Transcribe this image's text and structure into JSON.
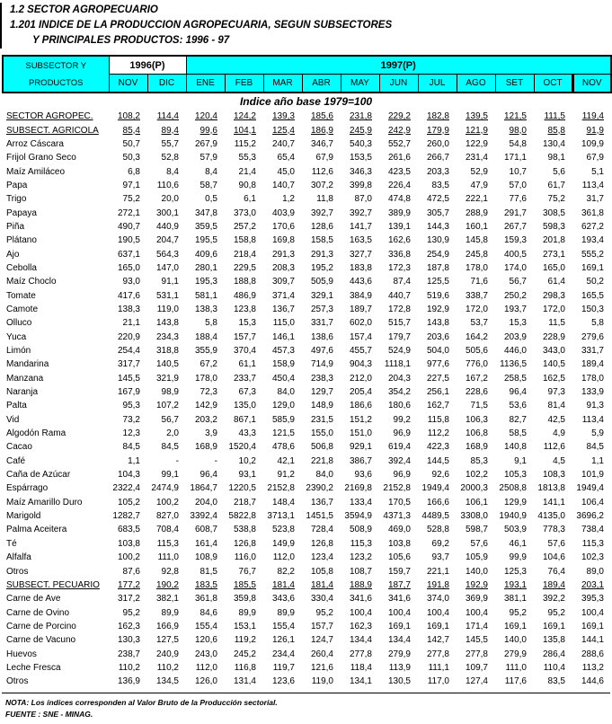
{
  "page": {
    "title1": "1.2 SECTOR AGROPECUARIO",
    "title2": "1.201 INDICE DE LA PRODUCCION AGROPECUARIA, SEGUN SUBSECTORES",
    "title3": "Y PRINCIPALES PRODUCTOS: 1996 - 97"
  },
  "header": {
    "col_title_line1": "SUBSECTOR Y",
    "col_title_line2": "PRODUCTOS",
    "year_1996": "1996(P)",
    "year_1997": "1997(P)",
    "months": [
      "NOV",
      "DIC",
      "ENE",
      "FEB",
      "MAR",
      "ABR",
      "MAY",
      "JUN",
      "JUL",
      "AGO",
      "SET",
      "OCT",
      "NOV"
    ]
  },
  "base_index_note": "Indice año base 1979=100",
  "colors": {
    "header_bg": "#00ffff",
    "year1996_bg": "#ffffff",
    "border": "#000000"
  },
  "table": {
    "rows": [
      {
        "label": "SECTOR AGROPEC.",
        "emphasis": true,
        "values": [
          "108,2",
          "114,4",
          "120,4",
          "124,2",
          "139,3",
          "185,6",
          "231,8",
          "229,2",
          "182,8",
          "139,5",
          "121,5",
          "111,5",
          "119,4"
        ]
      },
      {
        "label": "SUBSECT. AGRICOLA",
        "emphasis": true,
        "values": [
          "85,4",
          "89,4",
          "99,6",
          "104,1",
          "125,4",
          "186,9",
          "245,9",
          "242,9",
          "179,9",
          "121,9",
          "98,0",
          "85,8",
          "91,9"
        ]
      },
      {
        "label": "Arroz Cáscara",
        "emphasis": false,
        "values": [
          "50,7",
          "55,7",
          "267,9",
          "115,2",
          "240,7",
          "346,7",
          "540,3",
          "552,7",
          "260,0",
          "122,9",
          "54,8",
          "130,4",
          "109,9"
        ]
      },
      {
        "label": "Frijol Grano Seco",
        "emphasis": false,
        "values": [
          "50,3",
          "52,8",
          "57,9",
          "55,3",
          "65,4",
          "67,9",
          "153,5",
          "261,6",
          "266,7",
          "231,4",
          "171,1",
          "98,1",
          "67,9"
        ]
      },
      {
        "label": "Maíz Amiláceo",
        "emphasis": false,
        "values": [
          "6,8",
          "8,4",
          "8,4",
          "21,4",
          "45,0",
          "112,6",
          "346,3",
          "423,5",
          "203,3",
          "52,9",
          "10,7",
          "5,6",
          "5,1"
        ]
      },
      {
        "label": "Papa",
        "emphasis": false,
        "values": [
          "97,1",
          "110,6",
          "58,7",
          "90,8",
          "140,7",
          "307,2",
          "399,8",
          "226,4",
          "83,5",
          "47,9",
          "57,0",
          "61,7",
          "113,4"
        ]
      },
      {
        "label": "Trigo",
        "emphasis": false,
        "values": [
          "75,2",
          "20,0",
          "0,5",
          "6,1",
          "1,2",
          "11,8",
          "87,0",
          "474,8",
          "472,5",
          "222,1",
          "77,6",
          "75,2",
          "31,7"
        ]
      },
      {
        "label": "Papaya",
        "emphasis": false,
        "values": [
          "272,1",
          "300,1",
          "347,8",
          "373,0",
          "403,9",
          "392,7",
          "392,7",
          "389,9",
          "305,7",
          "288,9",
          "291,7",
          "308,5",
          "361,8"
        ]
      },
      {
        "label": "Piña",
        "emphasis": false,
        "values": [
          "490,7",
          "440,9",
          "359,5",
          "257,2",
          "170,6",
          "128,6",
          "141,7",
          "139,1",
          "144,3",
          "160,1",
          "267,7",
          "598,3",
          "627,2"
        ]
      },
      {
        "label": "Plátano",
        "emphasis": false,
        "values": [
          "190,5",
          "204,7",
          "195,5",
          "158,8",
          "169,8",
          "158,5",
          "163,5",
          "162,6",
          "130,9",
          "145,8",
          "159,3",
          "201,8",
          "193,4"
        ]
      },
      {
        "label": "Ajo",
        "emphasis": false,
        "values": [
          "637,1",
          "564,3",
          "409,6",
          "218,4",
          "291,3",
          "291,3",
          "327,7",
          "336,8",
          "254,9",
          "245,8",
          "400,5",
          "273,1",
          "555,2"
        ]
      },
      {
        "label": "Cebolla",
        "emphasis": false,
        "values": [
          "165,0",
          "147,0",
          "280,1",
          "229,5",
          "208,3",
          "195,2",
          "183,8",
          "172,3",
          "187,8",
          "178,0",
          "174,0",
          "165,0",
          "169,1"
        ]
      },
      {
        "label": "Maíz Choclo",
        "emphasis": false,
        "values": [
          "93,0",
          "91,1",
          "195,3",
          "188,8",
          "309,7",
          "505,9",
          "443,6",
          "87,4",
          "125,5",
          "71,6",
          "56,7",
          "61,4",
          "50,2"
        ]
      },
      {
        "label": "Tomate",
        "emphasis": false,
        "values": [
          "417,6",
          "531,1",
          "581,1",
          "486,9",
          "371,4",
          "329,1",
          "384,9",
          "440,7",
          "519,6",
          "338,7",
          "250,2",
          "298,3",
          "165,5"
        ]
      },
      {
        "label": "Camote",
        "emphasis": false,
        "values": [
          "138,3",
          "119,0",
          "138,3",
          "123,8",
          "136,7",
          "257,3",
          "189,7",
          "172,8",
          "192,9",
          "172,0",
          "193,7",
          "172,0",
          "150,3"
        ]
      },
      {
        "label": "Olluco",
        "emphasis": false,
        "values": [
          "21,1",
          "143,8",
          "5,8",
          "15,3",
          "115,0",
          "331,7",
          "602,0",
          "515,7",
          "143,8",
          "53,7",
          "15,3",
          "11,5",
          "5,8"
        ]
      },
      {
        "label": "Yuca",
        "emphasis": false,
        "values": [
          "220,9",
          "234,3",
          "188,4",
          "157,7",
          "146,1",
          "138,6",
          "157,4",
          "179,7",
          "203,6",
          "164,2",
          "203,9",
          "228,9",
          "279,6"
        ]
      },
      {
        "label": "Limón",
        "emphasis": false,
        "values": [
          "254,4",
          "318,8",
          "355,9",
          "370,4",
          "457,3",
          "497,6",
          "455,7",
          "524,9",
          "504,0",
          "505,6",
          "446,0",
          "343,0",
          "331,7"
        ]
      },
      {
        "label": "Mandarina",
        "emphasis": false,
        "values": [
          "317,7",
          "140,5",
          "67,2",
          "61,1",
          "158,9",
          "714,9",
          "904,3",
          "1118,1",
          "977,6",
          "776,0",
          "1136,5",
          "140,5",
          "189,4"
        ]
      },
      {
        "label": "Manzana",
        "emphasis": false,
        "values": [
          "145,5",
          "321,9",
          "178,0",
          "233,7",
          "450,4",
          "238,3",
          "212,0",
          "204,3",
          "227,5",
          "167,2",
          "258,5",
          "162,5",
          "178,0"
        ]
      },
      {
        "label": "Naranja",
        "emphasis": false,
        "values": [
          "167,9",
          "98,9",
          "72,3",
          "67,3",
          "84,0",
          "129,7",
          "205,4",
          "354,2",
          "256,1",
          "228,6",
          "96,4",
          "97,3",
          "133,9"
        ]
      },
      {
        "label": "Palta",
        "emphasis": false,
        "values": [
          "95,3",
          "107,2",
          "142,9",
          "135,0",
          "129,0",
          "148,9",
          "186,6",
          "180,6",
          "162,7",
          "71,5",
          "53,6",
          "81,4",
          "91,3"
        ]
      },
      {
        "label": "Vid",
        "emphasis": false,
        "values": [
          "73,2",
          "56,7",
          "203,2",
          "867,1",
          "585,9",
          "231,5",
          "151,2",
          "99,2",
          "115,8",
          "106,3",
          "82,7",
          "42,5",
          "113,4"
        ]
      },
      {
        "label": "Algodón Rama",
        "emphasis": false,
        "values": [
          "12,3",
          "2,0",
          "3,9",
          "43,3",
          "121,5",
          "155,0",
          "151,0",
          "96,9",
          "112,2",
          "106,8",
          "58,5",
          "4,9",
          "5,9"
        ]
      },
      {
        "label": "Cacao",
        "emphasis": false,
        "values": [
          "84,5",
          "84,5",
          "168,9",
          "1520,4",
          "478,6",
          "506,8",
          "929,1",
          "619,4",
          "422,3",
          "168,9",
          "140,8",
          "112,6",
          "84,5"
        ]
      },
      {
        "label": "Café",
        "emphasis": false,
        "values": [
          "1,1",
          "-",
          "-",
          "10,2",
          "42,1",
          "221,8",
          "386,7",
          "392,4",
          "144,5",
          "85,3",
          "9,1",
          "4,5",
          "1,1"
        ]
      },
      {
        "label": "Caña de Azúcar",
        "emphasis": false,
        "values": [
          "104,3",
          "99,1",
          "96,4",
          "93,1",
          "91,2",
          "84,0",
          "93,6",
          "96,9",
          "92,6",
          "102,2",
          "105,3",
          "108,3",
          "101,9"
        ]
      },
      {
        "label": "Espárrago",
        "emphasis": false,
        "values": [
          "2322,4",
          "2474,9",
          "1864,7",
          "1220,5",
          "2152,8",
          "2390,2",
          "2169,8",
          "2152,8",
          "1949,4",
          "2000,3",
          "2508,8",
          "1813,8",
          "1949,4"
        ]
      },
      {
        "label": "Maíz Amarillo Duro",
        "emphasis": false,
        "values": [
          "105,2",
          "100,2",
          "204,0",
          "218,7",
          "148,4",
          "136,7",
          "133,4",
          "170,5",
          "166,6",
          "106,1",
          "129,9",
          "141,1",
          "106,4"
        ]
      },
      {
        "label": "Marigold",
        "emphasis": false,
        "values": [
          "1282,7",
          "827,0",
          "3392,4",
          "5822,8",
          "3713,1",
          "1451,5",
          "3594,9",
          "4371,3",
          "4489,5",
          "3308,0",
          "1940,9",
          "4135,0",
          "3696,2"
        ]
      },
      {
        "label": "Palma Aceitera",
        "emphasis": false,
        "values": [
          "683,5",
          "708,4",
          "608,7",
          "538,8",
          "523,8",
          "728,4",
          "508,9",
          "469,0",
          "528,8",
          "598,7",
          "503,9",
          "778,3",
          "738,4"
        ]
      },
      {
        "label": "Té",
        "emphasis": false,
        "values": [
          "103,8",
          "115,3",
          "161,4",
          "126,8",
          "149,9",
          "126,8",
          "115,3",
          "103,8",
          "69,2",
          "57,6",
          "46,1",
          "57,6",
          "115,3"
        ]
      },
      {
        "label": "Alfalfa",
        "emphasis": false,
        "values": [
          "100,2",
          "111,0",
          "108,9",
          "116,0",
          "112,0",
          "123,4",
          "123,2",
          "105,6",
          "93,7",
          "105,9",
          "99,9",
          "104,6",
          "102,3"
        ]
      },
      {
        "label": "Otros",
        "emphasis": false,
        "values": [
          "87,6",
          "92,8",
          "81,5",
          "76,7",
          "82,2",
          "105,8",
          "108,7",
          "159,7",
          "221,1",
          "140,0",
          "125,3",
          "76,4",
          "89,0"
        ]
      },
      {
        "label": "SUBSECT. PECUARIO",
        "emphasis": true,
        "values": [
          "177,2",
          "190,2",
          "183,5",
          "185,5",
          "181,4",
          "181,4",
          "188,9",
          "187,7",
          "191,8",
          "192,9",
          "193,1",
          "189,4",
          "203,1"
        ]
      },
      {
        "label": "Carne de Ave",
        "emphasis": false,
        "values": [
          "317,2",
          "382,1",
          "361,8",
          "359,8",
          "343,6",
          "330,4",
          "341,6",
          "341,6",
          "374,0",
          "369,9",
          "381,1",
          "392,2",
          "395,3"
        ]
      },
      {
        "label": "Carne de Ovino",
        "emphasis": false,
        "values": [
          "95,2",
          "89,9",
          "84,6",
          "89,9",
          "89,9",
          "95,2",
          "100,4",
          "100,4",
          "100,4",
          "100,4",
          "95,2",
          "95,2",
          "100,4"
        ]
      },
      {
        "label": "Carne de Porcino",
        "emphasis": false,
        "values": [
          "162,3",
          "166,9",
          "155,4",
          "153,1",
          "155,4",
          "157,7",
          "162,3",
          "169,1",
          "169,1",
          "171,4",
          "169,1",
          "169,1",
          "169,1"
        ]
      },
      {
        "label": "Carne de Vacuno",
        "emphasis": false,
        "values": [
          "130,3",
          "127,5",
          "120,6",
          "119,2",
          "126,1",
          "124,7",
          "134,4",
          "134,4",
          "142,7",
          "145,5",
          "140,0",
          "135,8",
          "144,1"
        ]
      },
      {
        "label": "Huevos",
        "emphasis": false,
        "values": [
          "238,7",
          "240,9",
          "243,0",
          "245,2",
          "234,4",
          "260,4",
          "277,8",
          "279,9",
          "277,8",
          "277,8",
          "279,9",
          "286,4",
          "288,6"
        ]
      },
      {
        "label": "Leche Fresca",
        "emphasis": false,
        "values": [
          "110,2",
          "110,2",
          "112,0",
          "116,8",
          "119,7",
          "121,6",
          "118,4",
          "113,9",
          "111,1",
          "109,7",
          "111,0",
          "110,4",
          "113,2"
        ]
      },
      {
        "label": "Otros",
        "emphasis": false,
        "values": [
          "136,9",
          "134,5",
          "126,0",
          "131,4",
          "123,6",
          "119,0",
          "134,1",
          "130,5",
          "117,0",
          "127,4",
          "117,6",
          "83,5",
          "144,6"
        ]
      }
    ]
  },
  "footer": {
    "nota": "NOTA: Los índices corresponden al Valor Bruto de la Producción sectorial.",
    "fuente": "FUENTE : SNE - MINAG."
  }
}
